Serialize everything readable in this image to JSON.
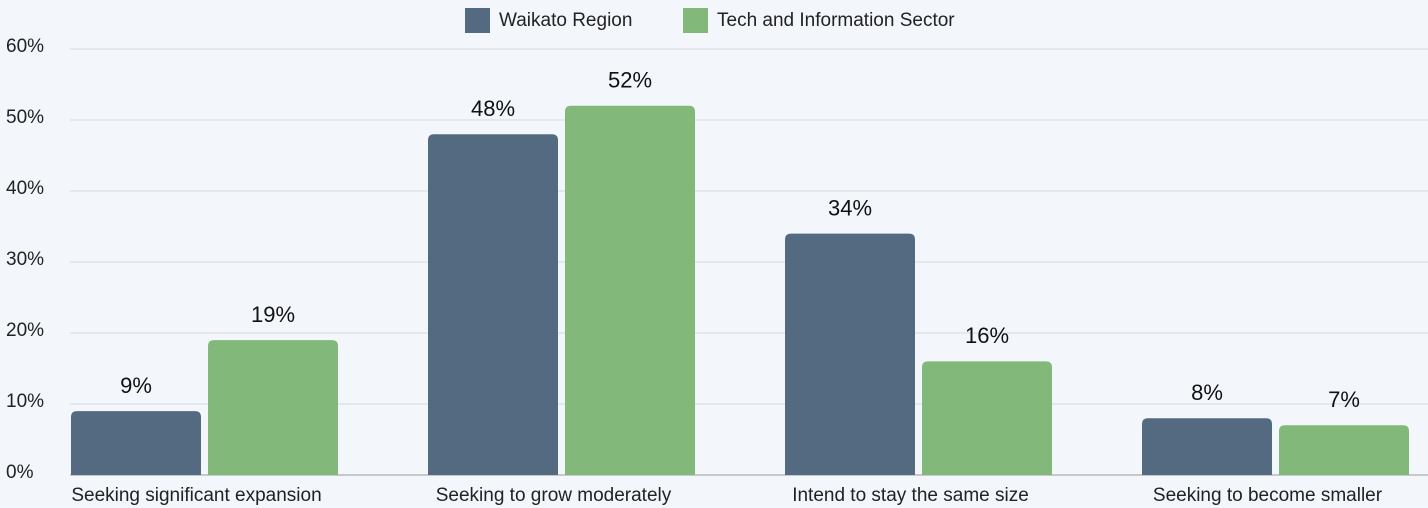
{
  "chart_data": {
    "type": "bar",
    "categories": [
      "Seeking significant expansion",
      "Seeking to grow moderately",
      "Intend to stay the same size",
      "Seeking to become smaller"
    ],
    "series": [
      {
        "name": "Waikato Region",
        "color": "#546a80",
        "values": [
          9,
          48,
          34,
          8
        ],
        "value_labels": [
          "9%",
          "48%",
          "34%",
          "8%"
        ]
      },
      {
        "name": "Tech and Information Sector",
        "color": "#82b879",
        "values": [
          19,
          52,
          16,
          7
        ],
        "value_labels": [
          "19%",
          "52%",
          "16%",
          "7%"
        ]
      }
    ],
    "ylim": [
      0,
      60
    ],
    "yticks": [
      {
        "value": 0,
        "label": "0%"
      },
      {
        "value": 10,
        "label": "10%"
      },
      {
        "value": 20,
        "label": "20%"
      },
      {
        "value": 30,
        "label": "30%"
      },
      {
        "value": 40,
        "label": "40%"
      },
      {
        "value": 50,
        "label": "50%"
      },
      {
        "value": 60,
        "label": "60%"
      }
    ],
    "grid": true,
    "legend": "top"
  }
}
